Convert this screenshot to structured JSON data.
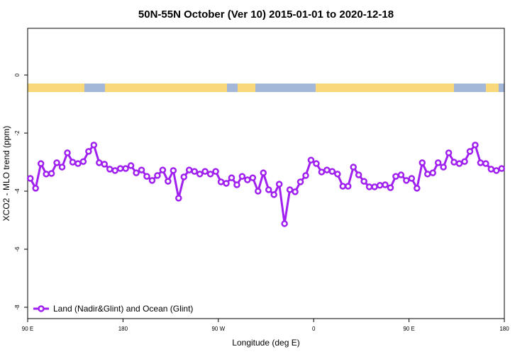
{
  "chart_data": {
    "type": "line",
    "title": "50N-55N October (Ver 10)   2015-01-01 to 2020-12-18",
    "xlabel": "Longitude (deg E)",
    "ylabel": "XCO2 - MLO trend (ppm)",
    "x": [
      92.5,
      97.5,
      102.5,
      107.5,
      112.5,
      117.5,
      122.5,
      127.5,
      132.5,
      137.5,
      142.5,
      147.5,
      152.5,
      157.5,
      162.5,
      167.5,
      172.5,
      177.5,
      182.5,
      187.5,
      192.5,
      197.5,
      202.5,
      207.5,
      212.5,
      217.5,
      222.5,
      227.5,
      232.5,
      237.5,
      242.5,
      247.5,
      252.5,
      257.5,
      262.5,
      267.5,
      272.5,
      277.5,
      282.5,
      287.5,
      292.5,
      297.5,
      302.5,
      307.5,
      312.5,
      317.5,
      322.5,
      327.5,
      332.5,
      337.5,
      342.5,
      347.5,
      352.5,
      357.5,
      362.5,
      367.5,
      372.5,
      377.5,
      382.5,
      387.5,
      392.5,
      397.5,
      402.5,
      407.5,
      412.5,
      417.5,
      422.5,
      427.5,
      432.5,
      437.5,
      442.5,
      447.5,
      452.5,
      457.5,
      462.5,
      467.5,
      472.5,
      477.5,
      482.5,
      487.5,
      492.5,
      497.5,
      502.5,
      507.5,
      512.5,
      517.5,
      522.5,
      527.5,
      532.5,
      537.5
    ],
    "series": [
      {
        "name": "Land (Nadir&Glint) and Ocean (Glint)",
        "color": "#a020f0",
        "values": [
          -3.56,
          -3.9,
          -3.05,
          -3.41,
          -3.39,
          -3.02,
          -3.17,
          -2.68,
          -3.0,
          -3.05,
          -2.98,
          -2.63,
          -2.41,
          -3.02,
          -3.07,
          -3.24,
          -3.29,
          -3.22,
          -3.22,
          -3.12,
          -3.37,
          -3.27,
          -3.49,
          -3.63,
          -3.46,
          -3.27,
          -3.66,
          -3.29,
          -4.24,
          -3.51,
          -3.27,
          -3.32,
          -3.41,
          -3.32,
          -3.41,
          -3.32,
          -3.68,
          -3.73,
          -3.54,
          -3.78,
          -3.49,
          -3.61,
          -3.54,
          -4.0,
          -3.37,
          -3.95,
          -4.12,
          -3.76,
          -5.12,
          -3.95,
          -4.02,
          -3.68,
          -3.46,
          -2.93,
          -3.05,
          -3.34,
          -3.27,
          -3.32,
          -3.41,
          -3.83,
          -3.83,
          -3.17,
          -3.44,
          -3.66,
          -3.85,
          -3.85,
          -3.8,
          -3.78,
          -3.88,
          -3.49,
          -3.44,
          -3.63,
          -3.56,
          -3.9,
          -3.02,
          -3.41,
          -3.37,
          -3.02,
          -3.17,
          -2.68,
          -3.0,
          -3.05,
          -2.98,
          -2.63,
          -2.41,
          -3.02,
          -3.05,
          -3.24,
          -3.29,
          -3.22
        ]
      }
    ],
    "xlim": [
      90,
      540
    ],
    "xticks": [
      {
        "value": 90,
        "label": "90 E"
      },
      180,
      {
        "value": 270,
        "label": "90 W"
      },
      {
        "value": 360,
        "label": "0"
      },
      {
        "value": 450,
        "label": "90 E"
      },
      {
        "value": 540,
        "label": "180"
      }
    ],
    "ylim": [
      -8.39,
      1.61
    ],
    "yticks": [
      0,
      -2,
      -4,
      -6,
      -8
    ],
    "legend": "bottom-left"
  }
}
